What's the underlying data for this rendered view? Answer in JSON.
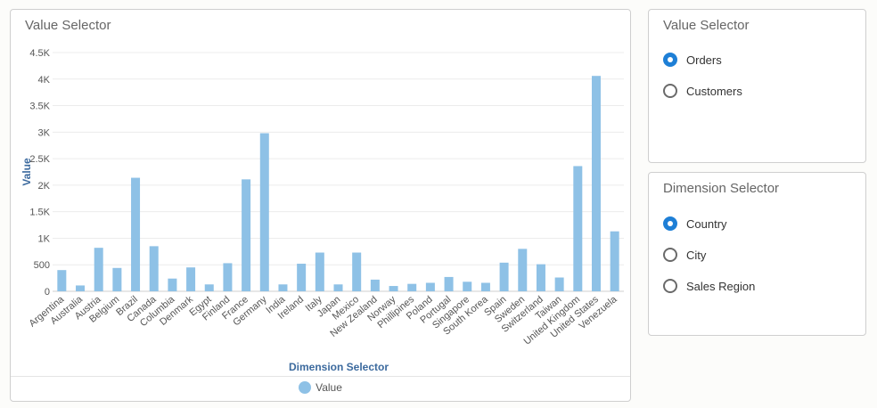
{
  "chart_panel": {
    "title": "Value Selector",
    "legend_label": "Value"
  },
  "value_selector": {
    "title": "Value Selector",
    "options": [
      {
        "label": "Orders",
        "checked": true
      },
      {
        "label": "Customers",
        "checked": false
      }
    ]
  },
  "dimension_selector": {
    "title": "Dimension Selector",
    "options": [
      {
        "label": "Country",
        "checked": true
      },
      {
        "label": "City",
        "checked": false
      },
      {
        "label": "Sales Region",
        "checked": false
      }
    ]
  },
  "colors": {
    "bar": "#8ec1e6",
    "axis_title": "#3c6a9e",
    "radio_checked": "#1e7fd6"
  },
  "chart_data": {
    "type": "bar",
    "xlabel": "Dimension Selector",
    "ylabel": "Value",
    "ylim": [
      0,
      4500
    ],
    "yticks": [
      0,
      500,
      1000,
      1500,
      2000,
      2500,
      3000,
      3500,
      4000,
      4500
    ],
    "ytick_labels": [
      "0",
      "500",
      "1K",
      "1.5K",
      "2K",
      "2.5K",
      "3K",
      "3.5K",
      "4K",
      "4.5K"
    ],
    "grid": true,
    "legend": "bottom-center",
    "categories": [
      "Argentina",
      "Australia",
      "Austria",
      "Belgium",
      "Brazil",
      "Canada",
      "Columbia",
      "Denmark",
      "Egypt",
      "Finland",
      "France",
      "Germany",
      "India",
      "Ireland",
      "Italy",
      "Japan",
      "Mexico",
      "New Zealand",
      "Norway",
      "Phillipines",
      "Poland",
      "Portugal",
      "Singapore",
      "South Korea",
      "Spain",
      "Sweden",
      "Switzerland",
      "Taiwan",
      "United Kingdom",
      "United States",
      "Venezuela"
    ],
    "series": [
      {
        "name": "Value",
        "values": [
          400,
          110,
          820,
          440,
          2140,
          850,
          240,
          450,
          130,
          530,
          2110,
          2980,
          130,
          520,
          730,
          130,
          730,
          220,
          100,
          140,
          160,
          270,
          180,
          160,
          540,
          800,
          510,
          260,
          2360,
          4060,
          1130
        ]
      }
    ]
  }
}
